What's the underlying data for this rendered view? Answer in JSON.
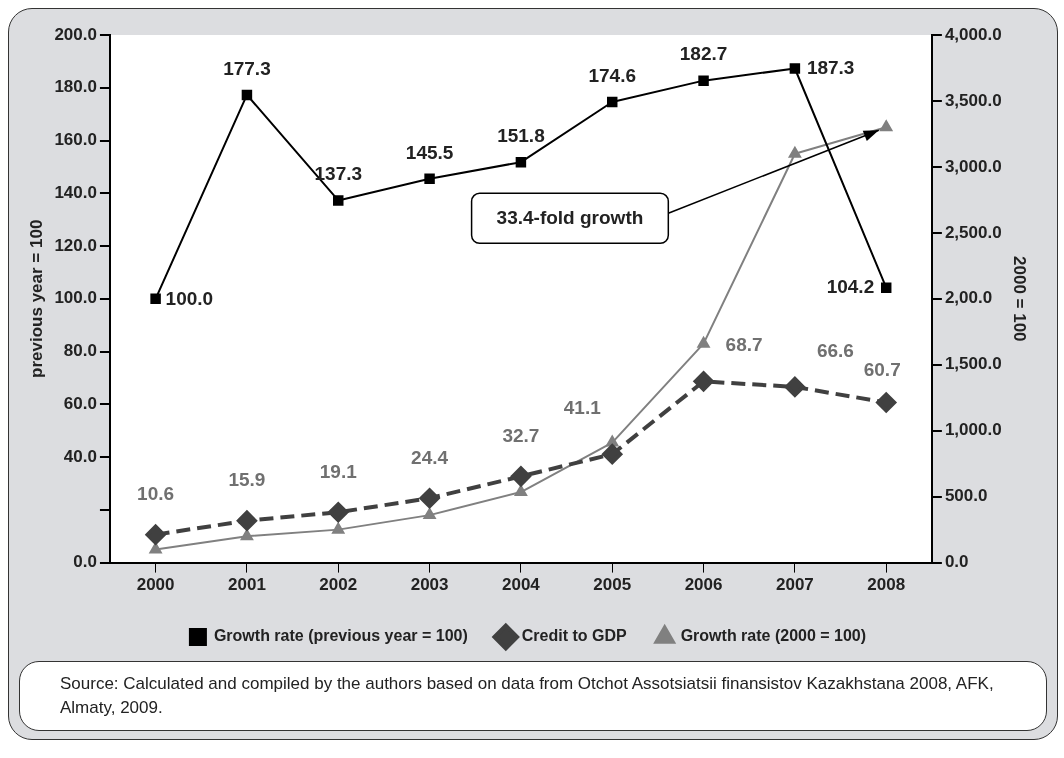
{
  "chart_data": {
    "type": "line",
    "categories": [
      "2000",
      "2001",
      "2002",
      "2003",
      "2004",
      "2005",
      "2006",
      "2007",
      "2008"
    ],
    "ylabel": "previous year = 100",
    "y2label": "2000 = 100",
    "ylim": [
      0,
      200
    ],
    "yticks": [
      {
        "value": 0,
        "label": "0.0"
      },
      {
        "value": 20,
        "label": null
      },
      {
        "value": 40,
        "label": "40.0"
      },
      {
        "value": 60,
        "label": "60.0"
      },
      {
        "value": 80,
        "label": "80.0"
      },
      {
        "value": 100,
        "label": "100.0"
      },
      {
        "value": 120,
        "label": "120.0"
      },
      {
        "value": 140,
        "label": "140.0"
      },
      {
        "value": 160,
        "label": "160.0"
      },
      {
        "value": 180,
        "label": "180.0"
      },
      {
        "value": 200,
        "label": "200.0"
      }
    ],
    "y2lim": [
      0,
      4000
    ],
    "y2ticks": [
      {
        "value": 0,
        "label": "0.0"
      },
      {
        "value": 500,
        "label": "500.0"
      },
      {
        "value": 1000,
        "label": "1,000.0"
      },
      {
        "value": 1500,
        "label": "1,500.0"
      },
      {
        "value": 2000,
        "label": "2,00.0"
      },
      {
        "value": 2500,
        "label": "2,500.0"
      },
      {
        "value": 3000,
        "label": "3,000.0"
      },
      {
        "value": 3500,
        "label": "3,500.0"
      },
      {
        "value": 4000,
        "label": "4,000.0"
      }
    ],
    "grid": false,
    "legend": "bottom",
    "series": [
      {
        "name": "Growth rate (previous year = 100)",
        "color": "#000000",
        "marker": "square",
        "line_style": "solid",
        "values": [
          100.0,
          177.3,
          137.3,
          145.5,
          151.8,
          174.6,
          182.7,
          187.3,
          104.2
        ],
        "value_labels": [
          "100.0",
          "177.3",
          "137.3",
          "145.5",
          "151.8",
          "174.6",
          "182.7",
          "187.3",
          "104.2"
        ]
      },
      {
        "name": "Credit to GDP",
        "color": "#404040",
        "marker": "diamond",
        "line_style": "dashed",
        "values": [
          10.6,
          15.9,
          19.1,
          24.4,
          32.7,
          41.1,
          68.7,
          66.6,
          60.7
        ],
        "value_labels": [
          "10.6",
          "15.9",
          "19.1",
          "24.4",
          "32.7",
          "41.1",
          "68.7",
          "66.6",
          "60.7"
        ]
      },
      {
        "name": "Growth rate (2000 = 100)",
        "color": "#808080",
        "marker": "triangle",
        "line_style": "solid",
        "axis": "y2",
        "values": [
          100,
          200,
          250,
          360,
          535,
          910,
          1660,
          3100,
          3300
        ]
      }
    ],
    "annotations": [
      "33.4-fold growth",
      "Source: Calculated and compiled by the authors based on data from Otchot Assotsiatsii finansistov Kazakhstana 2008, AFK, Almaty, 2009."
    ]
  }
}
